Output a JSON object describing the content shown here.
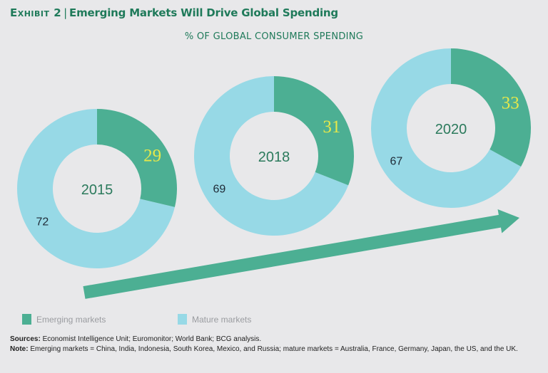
{
  "header": {
    "exhibit_label": "Exhibit 2",
    "separator": "|",
    "title": "Emerging Markets Will Drive Global Spending",
    "subtitle": "% OF GLOBAL CONSUMER SPENDING"
  },
  "colors": {
    "emerging": "#4caf93",
    "mature": "#97d9e6",
    "emerging_label": "#e6e84a",
    "mature_label": "#1e2a36",
    "year_label": "#2b7a5c",
    "arrow": "#4caf93",
    "background": "#e8e8ea"
  },
  "chart_data": {
    "type": "pie",
    "variant": "donut",
    "title": "Emerging Markets Will Drive Global Spending",
    "subtitle": "% OF GLOBAL CONSUMER SPENDING",
    "unit": "%",
    "series_names": [
      "Emerging markets",
      "Mature markets"
    ],
    "charts": [
      {
        "year": "2015",
        "emerging": 29,
        "mature": 72
      },
      {
        "year": "2018",
        "emerging": 31,
        "mature": 69
      },
      {
        "year": "2020",
        "emerging": 33,
        "mature": 67
      }
    ],
    "annotation": "upward trend arrow",
    "legend_position": "bottom-left"
  },
  "legend": [
    {
      "label": "Emerging markets",
      "key": "emerging"
    },
    {
      "label": "Mature markets",
      "key": "mature"
    }
  ],
  "footer": {
    "sources_label": "Sources:",
    "sources_text": " Economist Intelligence Unit; Euromonitor; World Bank; BCG analysis.",
    "note_label": "Note:",
    "note_text": " Emerging markets = China, India, Indonesia, South Korea, Mexico, and Russia; mature markets = Australia, France, Germany, Japan, the US, and the UK."
  }
}
